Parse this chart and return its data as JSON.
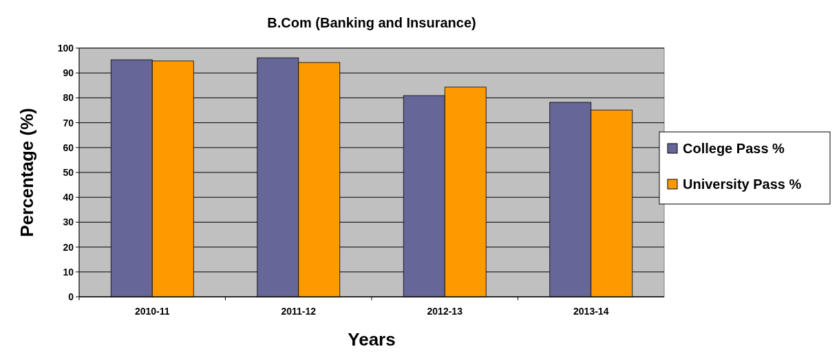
{
  "chart_data": {
    "type": "bar",
    "title": "B.Com (Banking and Insurance)",
    "xlabel": "Years",
    "ylabel": "Percentage (%)",
    "categories": [
      "2010-11",
      "2011-12",
      "2012-13",
      "2013-14"
    ],
    "series": [
      {
        "name": "College Pass %",
        "color": "#666699",
        "values": [
          95.3,
          96.1,
          80.9,
          78.2
        ]
      },
      {
        "name": "University Pass %",
        "color": "#ff9900",
        "values": [
          94.8,
          94.2,
          84.3,
          75.1
        ]
      }
    ],
    "ylim": [
      0,
      100
    ],
    "yticks": [
      0,
      10,
      20,
      30,
      40,
      50,
      60,
      70,
      80,
      90,
      100
    ],
    "grid": "y",
    "legend": "right"
  }
}
